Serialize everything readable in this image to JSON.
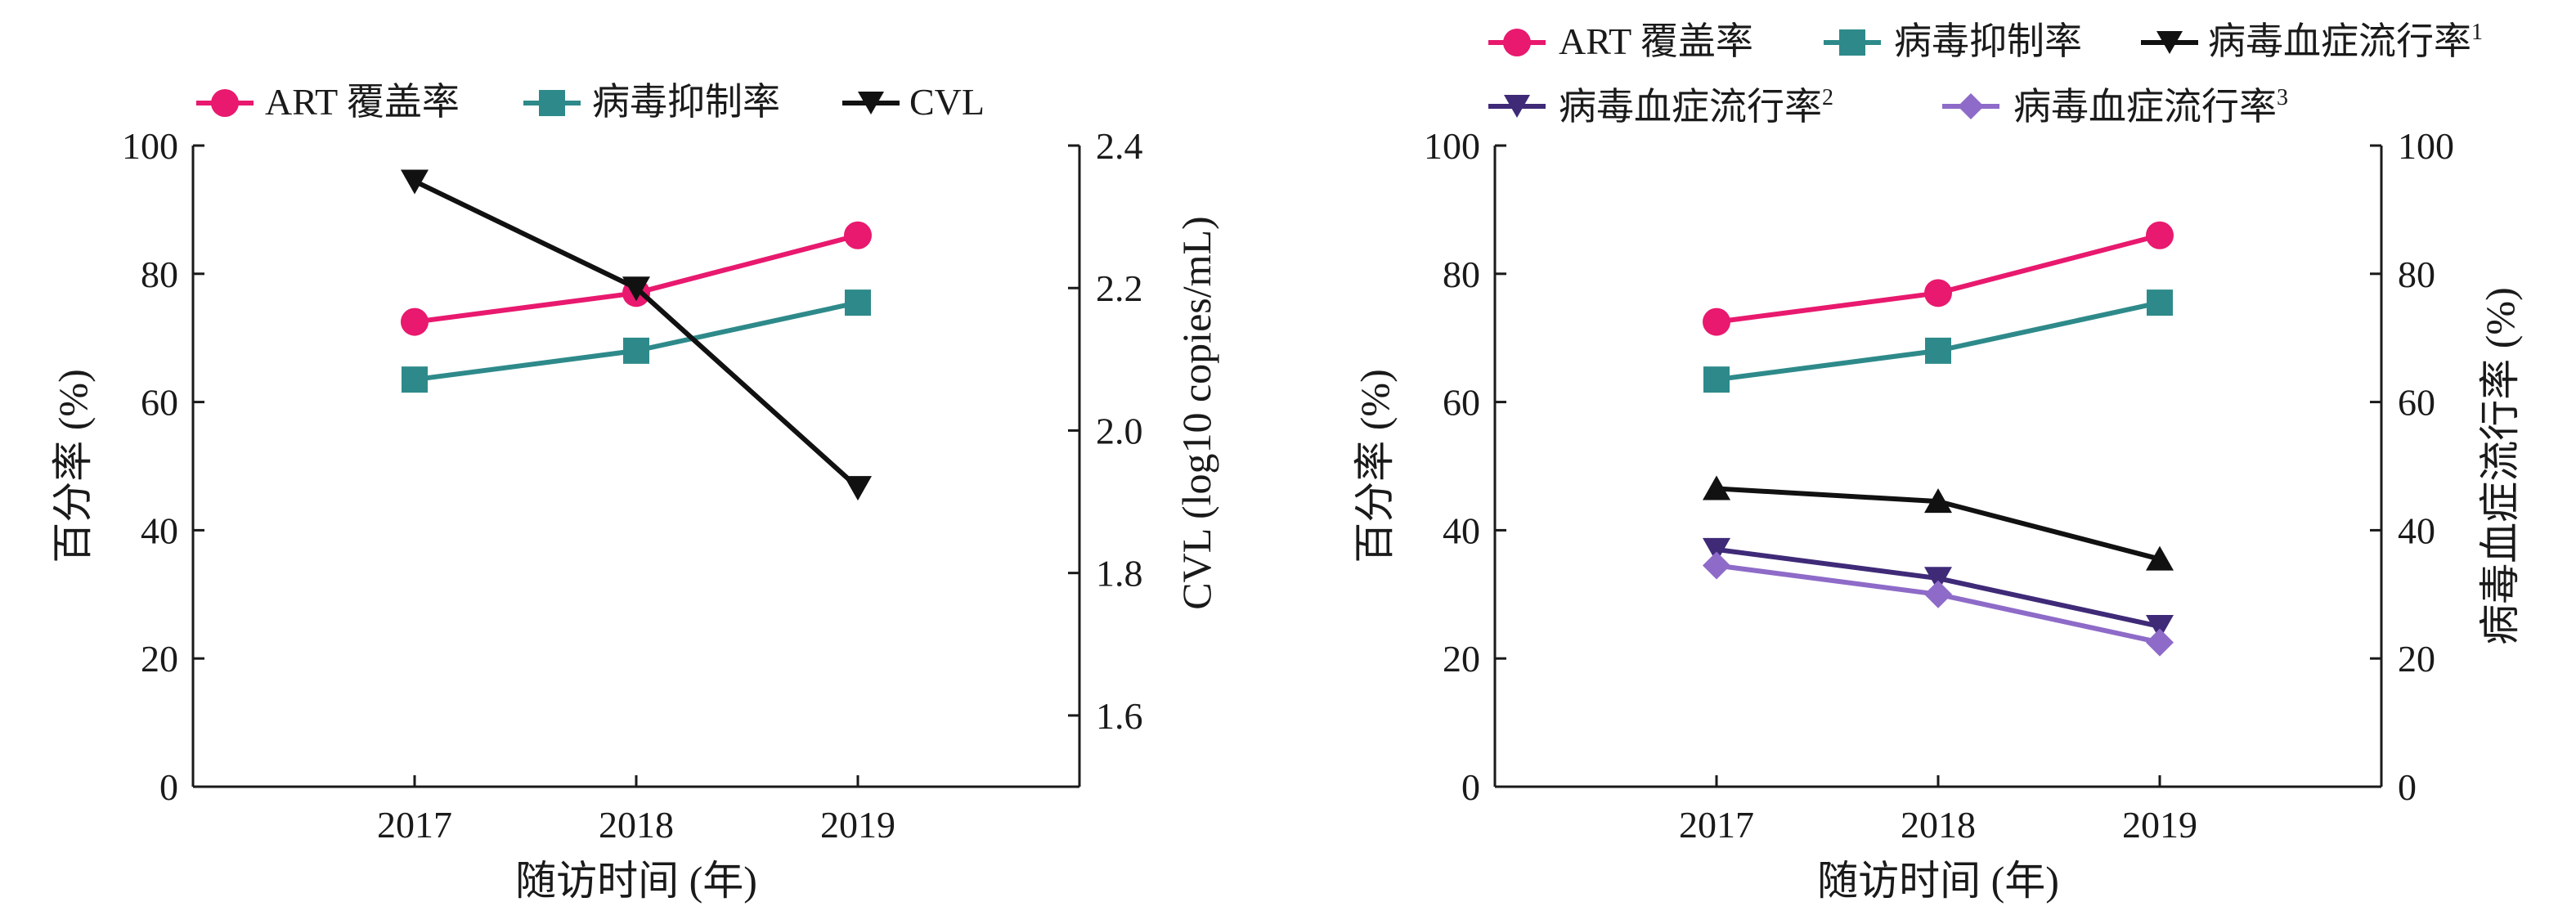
{
  "colors": {
    "art": "#E8196E",
    "suppression": "#2E8A8A",
    "cvl": "#111111",
    "prev1": "#111111",
    "prev2": "#3F2A78",
    "prev3": "#8E6BC8",
    "axis": "#1a1a1a"
  },
  "chart_data": [
    {
      "type": "line",
      "categories": [
        "2017",
        "2018",
        "2019"
      ],
      "xlabel": "随访时间 (年)",
      "ylabel": "百分率 (%)",
      "ylabel_right": "CVL (log10 copies/mL)",
      "ylim": [
        0,
        100
      ],
      "yticks": [
        "0",
        "20",
        "40",
        "60",
        "80",
        "100"
      ],
      "ylim_right": [
        1.5,
        2.4
      ],
      "yticks_right": [
        "1.6",
        "1.8",
        "2.0",
        "2.2",
        "2.4"
      ],
      "legend_position": "top",
      "series": [
        {
          "name": "ART 覆盖率",
          "values": [
            72.5,
            77,
            86
          ],
          "axis": "left",
          "marker": "circle",
          "color_key": "art"
        },
        {
          "name": "病毒抑制率",
          "values": [
            63.5,
            68,
            75.5
          ],
          "axis": "left",
          "marker": "square",
          "color_key": "suppression"
        },
        {
          "name": "CVL",
          "values": [
            2.35,
            2.2,
            1.92
          ],
          "axis": "right",
          "marker": "triangle-down",
          "color_key": "cvl"
        }
      ]
    },
    {
      "type": "line",
      "categories": [
        "2017",
        "2018",
        "2019"
      ],
      "xlabel": "随访时间 (年)",
      "ylabel": "百分率 (%)",
      "ylabel_right": "病毒血症流行率 (%)",
      "ylim": [
        0,
        100
      ],
      "yticks": [
        "0",
        "20",
        "40",
        "60",
        "80",
        "100"
      ],
      "ylim_right": [
        0,
        100
      ],
      "yticks_right": [
        "0",
        "20",
        "40",
        "60",
        "80",
        "100"
      ],
      "legend_position": "top",
      "series": [
        {
          "name": "ART 覆盖率",
          "sup": "",
          "values": [
            72.5,
            77,
            86
          ],
          "axis": "left",
          "marker": "circle",
          "color_key": "art"
        },
        {
          "name": "病毒抑制率",
          "sup": "",
          "values": [
            63.5,
            68,
            75.5
          ],
          "axis": "left",
          "marker": "square",
          "color_key": "suppression"
        },
        {
          "name": "病毒血症流行率",
          "sup": "1",
          "values": [
            46.5,
            44.5,
            35.5
          ],
          "axis": "right",
          "marker": "triangle-up",
          "color_key": "prev1"
        },
        {
          "name": "病毒血症流行率",
          "sup": "2",
          "values": [
            37,
            32.5,
            25
          ],
          "axis": "right",
          "marker": "triangle-down",
          "color_key": "prev2"
        },
        {
          "name": "病毒血症流行率",
          "sup": "3",
          "values": [
            34.5,
            30,
            22.5
          ],
          "axis": "right",
          "marker": "diamond",
          "color_key": "prev3"
        }
      ]
    }
  ]
}
